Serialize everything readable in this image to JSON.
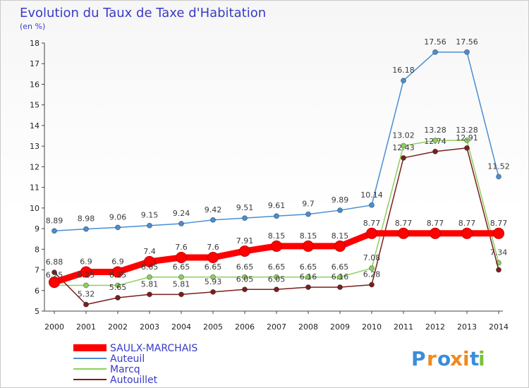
{
  "chart_data": {
    "type": "line",
    "title": "Evolution du Taux de Taxe d'Habitation",
    "subtitle": "(en %)",
    "x": [
      "2000",
      "2001",
      "2002",
      "2003",
      "2004",
      "2005",
      "2006",
      "2007",
      "2008",
      "2009",
      "2010",
      "2011",
      "2012",
      "2013",
      "2014"
    ],
    "ylim": [
      5,
      18
    ],
    "yticks": [
      5,
      6,
      7,
      8,
      9,
      10,
      11,
      12,
      13,
      14,
      15,
      16,
      17,
      18
    ],
    "grid": false,
    "legend_position": "bottom-left",
    "series": [
      {
        "name": "SAULX-MARCHAIS",
        "color": "#ff0000",
        "emphasis": true,
        "values": [
          6.4,
          6.9,
          6.9,
          7.4,
          7.6,
          7.6,
          7.91,
          8.15,
          8.15,
          8.15,
          8.77,
          8.77,
          8.77,
          8.77,
          8.77
        ],
        "labels": [
          "",
          "6.9",
          "6.9",
          "7.4",
          "7.6",
          "7.6",
          "7.91",
          "8.15",
          "8.15",
          "8.15",
          "8.77",
          "8.77",
          "8.77",
          "8.77",
          "8.77"
        ]
      },
      {
        "name": "Auteuil",
        "color": "#4a8ed0",
        "values": [
          8.89,
          8.98,
          9.06,
          9.15,
          9.24,
          9.42,
          9.51,
          9.61,
          9.7,
          9.89,
          10.14,
          16.18,
          17.56,
          17.56,
          11.52
        ],
        "labels": [
          "8.89",
          "8.98",
          "9.06",
          "9.15",
          "9.24",
          "9.42",
          "9.51",
          "9.61",
          "9.7",
          "9.89",
          "10.14",
          "16.18",
          "17.56",
          "17.56",
          "11.52"
        ]
      },
      {
        "name": "Marcq",
        "color": "#8ed05a",
        "values": [
          6.25,
          6.25,
          6.25,
          6.65,
          6.65,
          6.65,
          6.65,
          6.65,
          6.65,
          6.65,
          7.08,
          13.02,
          13.28,
          13.28,
          7.34
        ],
        "labels": [
          "6.25",
          "6.25",
          "6.25",
          "6.65",
          "6.65",
          "6.65",
          "6.65",
          "6.65",
          "6.65",
          "6.65",
          "7.08",
          "13.02",
          "13.28",
          "13.28",
          "7.34"
        ]
      },
      {
        "name": "Autouillet",
        "color": "#7a1e1e",
        "values": [
          6.88,
          5.32,
          5.65,
          5.81,
          5.81,
          5.93,
          6.05,
          6.05,
          6.16,
          6.16,
          6.28,
          12.43,
          12.74,
          12.91,
          7.0
        ],
        "labels": [
          "6.88",
          "5.32",
          "5.65",
          "5.81",
          "5.81",
          "5.93",
          "6.05",
          "6.05",
          "6.16",
          "6.16",
          "6.28",
          "12.43",
          "12.74",
          "12.91",
          ""
        ]
      }
    ]
  },
  "brand": {
    "name": "Proxiti",
    "letters": [
      "P",
      "r",
      "o",
      "x",
      "i",
      "t",
      "i"
    ],
    "letter_colors": [
      "#3a8ed8",
      "#f08a1e",
      "#3a8ed8",
      "#f08a1e",
      "#f08a1e",
      "#3a8ed8",
      "#7ac23a"
    ]
  }
}
